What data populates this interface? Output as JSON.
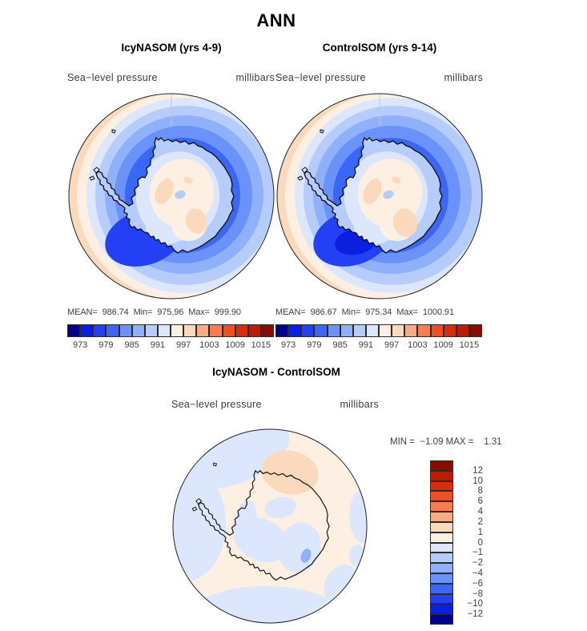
{
  "title": "ANN",
  "palette": {
    "blue_red": [
      "#00008f",
      "#0a1fe0",
      "#2440f5",
      "#3c66f8",
      "#6b92fa",
      "#8fb0fb",
      "#b6cdfc",
      "#dce7fd",
      "#fdf0e3",
      "#fbd9bd",
      "#f9ab81",
      "#f57d4f",
      "#ee4e22",
      "#d92c0d",
      "#ba1c04",
      "#8b0b00"
    ]
  },
  "panels": {
    "left": {
      "title": "IcyNASOM (yrs 4-9)",
      "field_label": "Sea−level pressure",
      "units": "millibars",
      "stats_line": "MEAN=  986.74  Min=  975.96  Max=  999.90",
      "colorbar_ticks": [
        "973",
        "979",
        "985",
        "991",
        "997",
        "1003",
        "1009",
        "1015"
      ]
    },
    "right": {
      "title": "ControlSOM (yrs 9-14)",
      "field_label": "Sea−level pressure",
      "units": "millibars",
      "stats_line": "MEAN=  986.67  Min=  975.34  Max=  1000.91",
      "colorbar_ticks": [
        "973",
        "979",
        "985",
        "991",
        "997",
        "1003",
        "1009",
        "1015"
      ]
    },
    "diff": {
      "title": "IcyNASOM - ControlSOM",
      "field_label": "Sea−level pressure",
      "units": "millibars",
      "minmax_line": "MIN =  −1.09 MAX =    1.31",
      "colorbar_ticks": [
        "12",
        "10",
        "8",
        "6",
        "4",
        "2",
        "1",
        "0",
        "−1",
        "−2",
        "−4",
        "−6",
        "−8",
        "−10",
        "−12"
      ]
    }
  },
  "chart_data": [
    {
      "type": "heatmap",
      "subtype": "filled-contour south polar stereographic map",
      "title": "IcyNASOM (yrs 4-9)",
      "variable": "Sea-level pressure",
      "units": "millibars",
      "region": "Antarctica / Southern Ocean",
      "stats": {
        "mean": 986.74,
        "min": 975.96,
        "max": 999.9
      },
      "contour_levels": [
        973,
        976,
        979,
        982,
        985,
        988,
        991,
        994,
        997,
        1000,
        1003,
        1006,
        1009,
        1012,
        1015
      ],
      "labeled_levels": [
        973,
        979,
        985,
        991,
        997,
        1003,
        1009,
        1015
      ],
      "colormap": "blue_red 16 bins (blue=low, red=high)",
      "legend_position": "below",
      "pattern": "deep blue circumpolar low-pressure ring around coast (darkest southwest of the Peninsula), pale cream/peach high over East Antarctic plateau, peach rim at western map edge"
    },
    {
      "type": "heatmap",
      "subtype": "filled-contour south polar stereographic map",
      "title": "ControlSOM (yrs 9-14)",
      "variable": "Sea-level pressure",
      "units": "millibars",
      "region": "Antarctica / Southern Ocean",
      "stats": {
        "mean": 986.67,
        "min": 975.34,
        "max": 1000.91
      },
      "contour_levels": [
        973,
        976,
        979,
        982,
        985,
        988,
        991,
        994,
        997,
        1000,
        1003,
        1006,
        1009,
        1012,
        1015
      ],
      "labeled_levels": [
        973,
        979,
        985,
        991,
        997,
        1003,
        1009,
        1015
      ],
      "colormap": "blue_red 16 bins (blue=low, red=high)",
      "legend_position": "below",
      "pattern": "same structure as IcyNASOM with an extra darkest-navy low cell in the Ross/Amundsen sector (lower-left)"
    },
    {
      "type": "heatmap",
      "subtype": "filled-contour difference map, south polar stereographic",
      "title": "IcyNASOM - ControlSOM",
      "variable": "Sea-level pressure difference",
      "units": "millibars",
      "stats": {
        "min": -1.09,
        "max": 1.31
      },
      "contour_levels": [
        -12,
        -10,
        -8,
        -6,
        -4,
        -2,
        -1,
        0,
        1,
        2,
        4,
        6,
        8,
        10,
        12
      ],
      "colormap": "red_blue 16 bins (red=positive at top of vertical bar)",
      "legend_position": "right",
      "pattern": "mostly 0 to +1 (pale peach); −1 to 0 pale blue patches at NW, W, S and E rims and over pole; +1 to +2 peach cell over Dronning Maud Land; small −1 to −2 spot east of pole"
    }
  ]
}
